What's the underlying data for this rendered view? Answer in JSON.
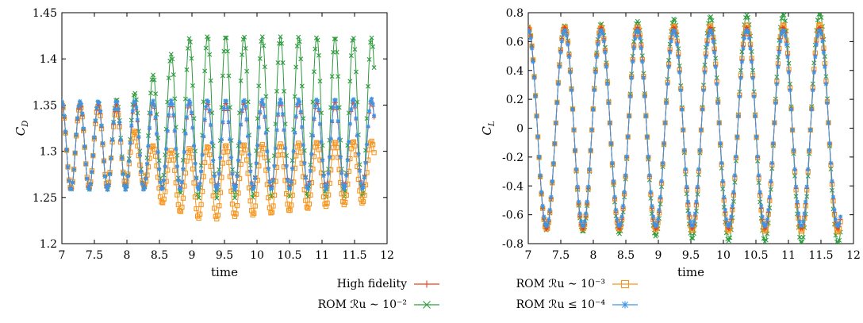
{
  "figure": {
    "legend": [
      {
        "label": "High fidelity",
        "color": "#e8401c",
        "marker": "plus"
      },
      {
        "label": "ROM ℛu ∼ 10⁻³",
        "color": "#f7941d",
        "marker": "square"
      },
      {
        "label": "ROM ℛu ∼ 10⁻²",
        "color": "#2c9b3c",
        "marker": "x"
      },
      {
        "label": "ROM ℛu ≤ 10⁻⁴",
        "color": "#3d94e6",
        "marker": "star"
      }
    ]
  },
  "chart_data": [
    {
      "type": "line",
      "xlabel": "time",
      "ylabel": "C_D",
      "xlim": [
        7,
        12
      ],
      "ylim": [
        1.2,
        1.45
      ],
      "xticks": [
        "7",
        "7.5",
        "8",
        "8.5",
        "9",
        "9.5",
        "10",
        "10.5",
        "11",
        "11.5",
        "12"
      ],
      "yticks": [
        "1.2",
        "1.25",
        "1.3",
        "1.35",
        "1.4",
        "1.45"
      ],
      "grid": false,
      "period": 0.28,
      "t_range": [
        7.0,
        11.8
      ],
      "series": [
        {
          "name": "High fidelity",
          "color": "#e8401c",
          "marker": "plus",
          "mean_knots": [
            [
              7.0,
              1.305
            ],
            [
              11.8,
              1.308
            ]
          ],
          "amp_knots": [
            [
              7.0,
              0.046
            ],
            [
              11.8,
              0.046
            ]
          ]
        },
        {
          "name": "ROM ℛu ∼ 10⁻³",
          "color": "#f7941d",
          "marker": "square",
          "mean_knots": [
            [
              7.0,
              1.305
            ],
            [
              7.9,
              1.305
            ],
            [
              8.2,
              1.29
            ],
            [
              8.6,
              1.27
            ],
            [
              9.2,
              1.265
            ],
            [
              9.6,
              1.268
            ],
            [
              10.2,
              1.27
            ],
            [
              11.0,
              1.275
            ],
            [
              11.8,
              1.278
            ]
          ],
          "amp_knots": [
            [
              7.0,
              0.046
            ],
            [
              7.9,
              0.042
            ],
            [
              8.2,
              0.022
            ],
            [
              8.6,
              0.03
            ],
            [
              9.2,
              0.04
            ],
            [
              10.0,
              0.038
            ],
            [
              11.0,
              0.035
            ],
            [
              11.8,
              0.033
            ]
          ]
        },
        {
          "name": "ROM ℛu ∼ 10⁻²",
          "color": "#2c9b3c",
          "marker": "x",
          "mean_knots": [
            [
              7.0,
              1.305
            ],
            [
              7.7,
              1.306
            ],
            [
              8.2,
              1.312
            ],
            [
              8.6,
              1.33
            ],
            [
              9.0,
              1.337
            ],
            [
              11.8,
              1.337
            ]
          ],
          "amp_knots": [
            [
              7.0,
              0.047
            ],
            [
              7.7,
              0.047
            ],
            [
              8.2,
              0.053
            ],
            [
              8.6,
              0.07
            ],
            [
              9.0,
              0.088
            ],
            [
              11.8,
              0.086
            ]
          ]
        },
        {
          "name": "ROM ℛu ≤ 10⁻⁴",
          "color": "#3d94e6",
          "marker": "star",
          "mean_knots": [
            [
              7.0,
              1.306
            ],
            [
              11.8,
              1.308
            ]
          ],
          "amp_knots": [
            [
              7.0,
              0.048
            ],
            [
              11.8,
              0.049
            ]
          ]
        }
      ]
    },
    {
      "type": "line",
      "xlabel": "time",
      "ylabel": "C_L",
      "xlim": [
        7,
        12
      ],
      "ylim": [
        -0.8,
        0.8
      ],
      "xticks": [
        "7",
        "7.5",
        "8",
        "8.5",
        "9",
        "9.5",
        "10",
        "10.5",
        "11",
        "11.5",
        "12"
      ],
      "yticks": [
        "-0.8",
        "-0.6",
        "-0.4",
        "-0.2",
        "0",
        "0.2",
        "0.4",
        "0.6",
        "0.8"
      ],
      "grid": false,
      "period": 0.56,
      "t_range": [
        7.0,
        11.8
      ],
      "series": [
        {
          "name": "High fidelity",
          "color": "#e8401c",
          "marker": "plus",
          "mean_knots": [
            [
              7.0,
              0.0
            ],
            [
              11.8,
              0.0
            ]
          ],
          "amp_knots": [
            [
              7.0,
              0.7
            ],
            [
              11.8,
              0.7
            ]
          ]
        },
        {
          "name": "ROM ℛu ∼ 10⁻³",
          "color": "#f7941d",
          "marker": "square",
          "mean_knots": [
            [
              7.0,
              0.0
            ],
            [
              11.8,
              0.0
            ]
          ],
          "amp_knots": [
            [
              7.0,
              0.7
            ],
            [
              8.5,
              0.7
            ],
            [
              9.5,
              0.71
            ],
            [
              11.8,
              0.72
            ]
          ]
        },
        {
          "name": "ROM ℛu ∼ 10⁻²",
          "color": "#2c9b3c",
          "marker": "x",
          "mean_knots": [
            [
              7.0,
              0.0
            ],
            [
              11.8,
              0.0
            ]
          ],
          "amp_knots": [
            [
              7.0,
              0.7
            ],
            [
              8.0,
              0.72
            ],
            [
              9.0,
              0.75
            ],
            [
              10.0,
              0.78
            ],
            [
              11.8,
              0.8
            ]
          ]
        },
        {
          "name": "ROM ℛu ≤ 10⁻⁴",
          "color": "#3d94e6",
          "marker": "star",
          "mean_knots": [
            [
              7.0,
              0.0
            ],
            [
              11.8,
              0.0
            ]
          ],
          "amp_knots": [
            [
              7.0,
              0.68
            ],
            [
              11.8,
              0.68
            ]
          ]
        }
      ]
    }
  ]
}
